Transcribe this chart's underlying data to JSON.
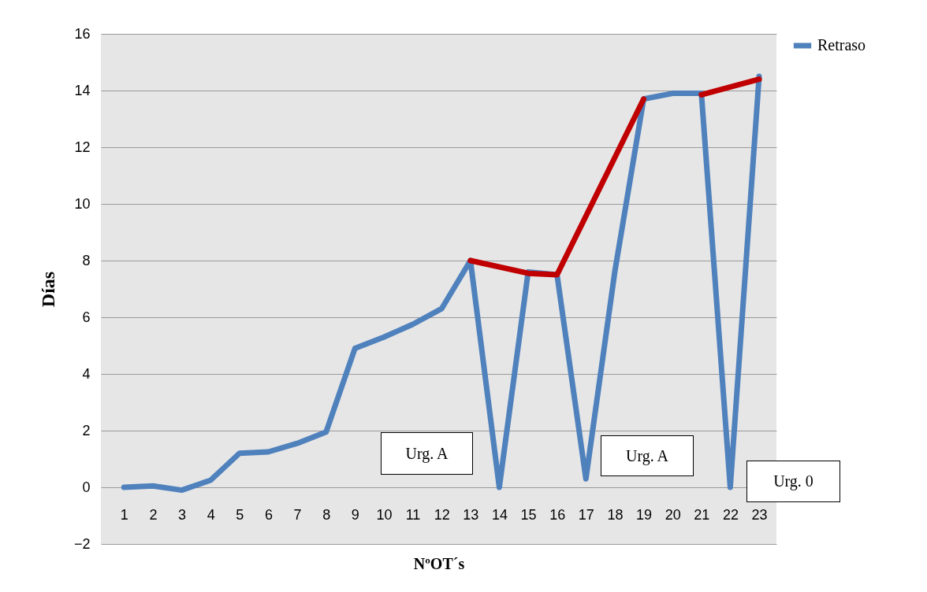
{
  "chart_data": {
    "type": "line",
    "xlabel": "NºOT´s",
    "ylabel": "Días",
    "x": [
      1,
      2,
      3,
      4,
      5,
      6,
      7,
      8,
      9,
      10,
      11,
      12,
      13,
      14,
      15,
      16,
      17,
      18,
      19,
      20,
      21,
      22,
      23
    ],
    "series": [
      {
        "name": "Retraso",
        "color": "#4f81bd",
        "values": [
          0,
          0.05,
          -0.1,
          0.25,
          1.2,
          1.25,
          1.55,
          1.95,
          4.9,
          5.3,
          5.75,
          6.3,
          8.0,
          0,
          7.6,
          7.5,
          0.3,
          7.6,
          13.7,
          13.9,
          13.9,
          0,
          14.5
        ]
      },
      {
        "color": "#c00000",
        "x": [
          13,
          15,
          16,
          19
        ],
        "values": [
          8.0,
          7.55,
          7.5,
          13.7
        ]
      },
      {
        "color": "#c00000",
        "x": [
          21,
          23
        ],
        "values": [
          13.85,
          14.4
        ]
      }
    ],
    "xlim": [
      0.2,
      23.6
    ],
    "xticks": [
      1,
      2,
      3,
      4,
      5,
      6,
      7,
      8,
      9,
      10,
      11,
      12,
      13,
      14,
      15,
      16,
      17,
      18,
      19,
      20,
      21,
      22,
      23
    ],
    "ylim": [
      -2,
      16
    ],
    "yticks": [
      -2,
      0,
      2,
      4,
      6,
      8,
      10,
      12,
      14,
      16
    ],
    "grid": "y",
    "legend": "right",
    "annotations": [
      "Urg. A",
      "Urg. A",
      "Urg. 0"
    ]
  }
}
